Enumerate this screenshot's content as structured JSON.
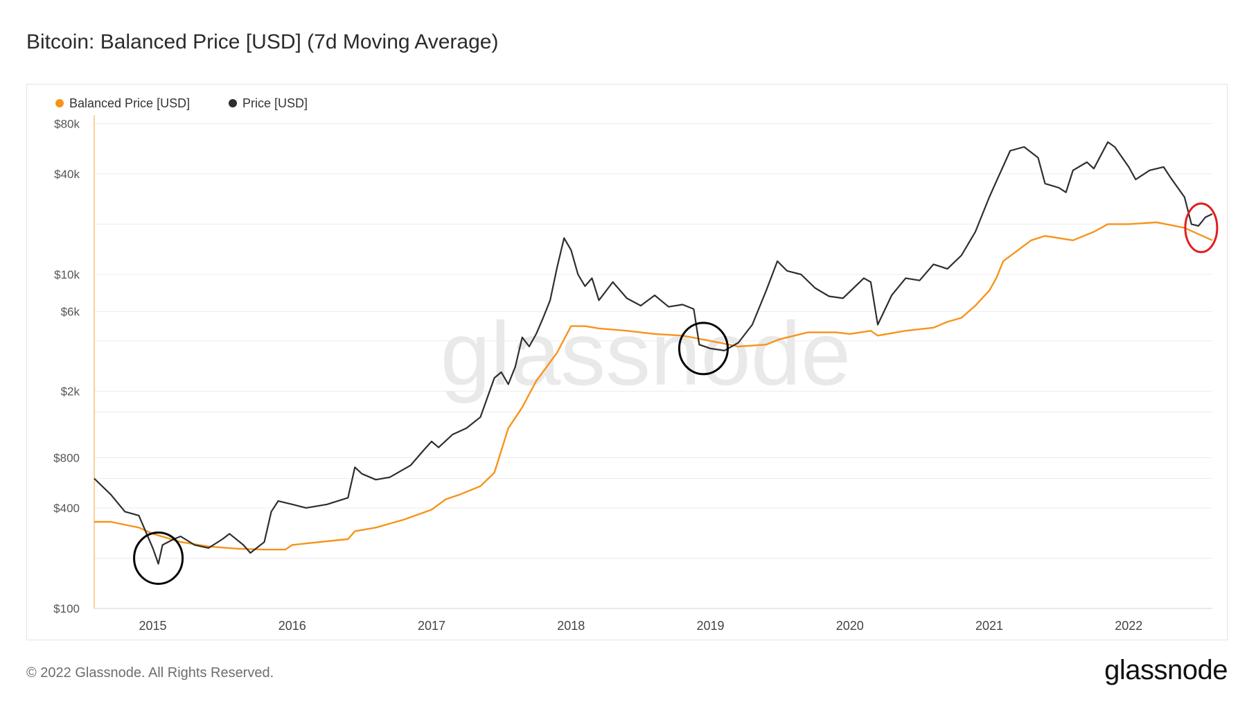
{
  "title": "Bitcoin: Balanced Price [USD] (7d Moving Average)",
  "footer": "© 2022 Glassnode. All Rights Reserved.",
  "brand": "glassnode",
  "watermark": "glassnode",
  "colors": {
    "balanced": "#f7931a",
    "price": "#2e2e2e",
    "grid": "#ececec",
    "circle_black": "#000000",
    "circle_red": "#e01e1e"
  },
  "chart_data": {
    "type": "line",
    "title": "Bitcoin: Balanced Price [USD] (7d Moving Average)",
    "yscale": "log",
    "xlim": [
      2014.58,
      2022.6
    ],
    "ylim": [
      100,
      90000
    ],
    "x_ticks": [
      {
        "x": 2015,
        "label": "2015"
      },
      {
        "x": 2016,
        "label": "2016"
      },
      {
        "x": 2017,
        "label": "2017"
      },
      {
        "x": 2018,
        "label": "2018"
      },
      {
        "x": 2019,
        "label": "2019"
      },
      {
        "x": 2020,
        "label": "2020"
      },
      {
        "x": 2021,
        "label": "2021"
      },
      {
        "x": 2022,
        "label": "2022"
      }
    ],
    "y_ticks": [
      {
        "v": 100,
        "label": "$100"
      },
      {
        "v": 400,
        "label": "$400"
      },
      {
        "v": 800,
        "label": "$800"
      },
      {
        "v": 2000,
        "label": "$2k"
      },
      {
        "v": 6000,
        "label": "$6k"
      },
      {
        "v": 10000,
        "label": "$10k"
      },
      {
        "v": 40000,
        "label": "$40k"
      },
      {
        "v": 80000,
        "label": "$80k"
      }
    ],
    "y_gridlines": [
      100,
      200,
      400,
      600,
      800,
      1500,
      2000,
      4000,
      6000,
      10000,
      20000,
      40000,
      80000
    ],
    "legend": [
      {
        "name": "Balanced Price [USD]",
        "color": "#f7931a"
      },
      {
        "name": "Price [USD]",
        "color": "#2e2e2e"
      }
    ],
    "series": [
      {
        "name": "Balanced Price [USD]",
        "points": [
          [
            2014.58,
            330
          ],
          [
            2014.7,
            330
          ],
          [
            2014.9,
            305
          ],
          [
            2015.0,
            280
          ],
          [
            2015.2,
            250
          ],
          [
            2015.4,
            235
          ],
          [
            2015.6,
            228
          ],
          [
            2015.8,
            225
          ],
          [
            2015.95,
            225
          ],
          [
            2016.0,
            240
          ],
          [
            2016.1,
            245
          ],
          [
            2016.3,
            255
          ],
          [
            2016.4,
            260
          ],
          [
            2016.45,
            290
          ],
          [
            2016.6,
            305
          ],
          [
            2016.8,
            340
          ],
          [
            2017.0,
            390
          ],
          [
            2017.1,
            450
          ],
          [
            2017.2,
            480
          ],
          [
            2017.35,
            540
          ],
          [
            2017.45,
            650
          ],
          [
            2017.55,
            1200
          ],
          [
            2017.65,
            1600
          ],
          [
            2017.75,
            2300
          ],
          [
            2017.9,
            3400
          ],
          [
            2018.0,
            4900
          ],
          [
            2018.1,
            4900
          ],
          [
            2018.2,
            4750
          ],
          [
            2018.4,
            4600
          ],
          [
            2018.6,
            4400
          ],
          [
            2018.8,
            4300
          ],
          [
            2019.0,
            4000
          ],
          [
            2019.2,
            3700
          ],
          [
            2019.4,
            3800
          ],
          [
            2019.5,
            4100
          ],
          [
            2019.7,
            4500
          ],
          [
            2019.9,
            4500
          ],
          [
            2020.0,
            4400
          ],
          [
            2020.15,
            4600
          ],
          [
            2020.2,
            4300
          ],
          [
            2020.4,
            4600
          ],
          [
            2020.6,
            4800
          ],
          [
            2020.7,
            5200
          ],
          [
            2020.8,
            5500
          ],
          [
            2020.9,
            6500
          ],
          [
            2021.0,
            8000
          ],
          [
            2021.05,
            9500
          ],
          [
            2021.1,
            12000
          ],
          [
            2021.3,
            16000
          ],
          [
            2021.4,
            17000
          ],
          [
            2021.6,
            16000
          ],
          [
            2021.75,
            18000
          ],
          [
            2021.85,
            20000
          ],
          [
            2022.0,
            20000
          ],
          [
            2022.2,
            20500
          ],
          [
            2022.4,
            19000
          ],
          [
            2022.6,
            16000
          ]
        ]
      },
      {
        "name": "Price [USD]",
        "points": [
          [
            2014.58,
            600
          ],
          [
            2014.7,
            480
          ],
          [
            2014.8,
            380
          ],
          [
            2014.9,
            360
          ],
          [
            2015.0,
            230
          ],
          [
            2015.04,
            185
          ],
          [
            2015.07,
            240
          ],
          [
            2015.15,
            260
          ],
          [
            2015.2,
            270
          ],
          [
            2015.3,
            240
          ],
          [
            2015.4,
            230
          ],
          [
            2015.5,
            260
          ],
          [
            2015.55,
            280
          ],
          [
            2015.65,
            240
          ],
          [
            2015.7,
            215
          ],
          [
            2015.8,
            250
          ],
          [
            2015.85,
            380
          ],
          [
            2015.9,
            440
          ],
          [
            2016.0,
            420
          ],
          [
            2016.1,
            400
          ],
          [
            2016.25,
            420
          ],
          [
            2016.4,
            460
          ],
          [
            2016.45,
            700
          ],
          [
            2016.5,
            640
          ],
          [
            2016.6,
            590
          ],
          [
            2016.7,
            610
          ],
          [
            2016.85,
            720
          ],
          [
            2016.95,
            900
          ],
          [
            2017.0,
            1000
          ],
          [
            2017.05,
            920
          ],
          [
            2017.15,
            1100
          ],
          [
            2017.25,
            1200
          ],
          [
            2017.35,
            1400
          ],
          [
            2017.45,
            2400
          ],
          [
            2017.5,
            2600
          ],
          [
            2017.55,
            2200
          ],
          [
            2017.6,
            2800
          ],
          [
            2017.65,
            4200
          ],
          [
            2017.7,
            3700
          ],
          [
            2017.75,
            4400
          ],
          [
            2017.8,
            5500
          ],
          [
            2017.85,
            7000
          ],
          [
            2017.9,
            11000
          ],
          [
            2017.95,
            16500
          ],
          [
            2018.0,
            14000
          ],
          [
            2018.05,
            10000
          ],
          [
            2018.1,
            8500
          ],
          [
            2018.15,
            9500
          ],
          [
            2018.2,
            7000
          ],
          [
            2018.3,
            9000
          ],
          [
            2018.4,
            7200
          ],
          [
            2018.5,
            6500
          ],
          [
            2018.6,
            7500
          ],
          [
            2018.7,
            6400
          ],
          [
            2018.8,
            6600
          ],
          [
            2018.88,
            6200
          ],
          [
            2018.92,
            3800
          ],
          [
            2019.0,
            3600
          ],
          [
            2019.1,
            3500
          ],
          [
            2019.2,
            3900
          ],
          [
            2019.3,
            5000
          ],
          [
            2019.4,
            8000
          ],
          [
            2019.48,
            12000
          ],
          [
            2019.55,
            10500
          ],
          [
            2019.65,
            10000
          ],
          [
            2019.75,
            8300
          ],
          [
            2019.85,
            7400
          ],
          [
            2019.95,
            7200
          ],
          [
            2020.1,
            9500
          ],
          [
            2020.15,
            9000
          ],
          [
            2020.2,
            5000
          ],
          [
            2020.3,
            7500
          ],
          [
            2020.4,
            9500
          ],
          [
            2020.5,
            9200
          ],
          [
            2020.6,
            11500
          ],
          [
            2020.7,
            10800
          ],
          [
            2020.8,
            13000
          ],
          [
            2020.9,
            18000
          ],
          [
            2021.0,
            29000
          ],
          [
            2021.05,
            36000
          ],
          [
            2021.15,
            55000
          ],
          [
            2021.25,
            58000
          ],
          [
            2021.35,
            50000
          ],
          [
            2021.4,
            35000
          ],
          [
            2021.5,
            33000
          ],
          [
            2021.55,
            31000
          ],
          [
            2021.6,
            42000
          ],
          [
            2021.7,
            47000
          ],
          [
            2021.75,
            43000
          ],
          [
            2021.85,
            62000
          ],
          [
            2021.9,
            58000
          ],
          [
            2022.0,
            44000
          ],
          [
            2022.05,
            37000
          ],
          [
            2022.15,
            42000
          ],
          [
            2022.25,
            44000
          ],
          [
            2022.3,
            38000
          ],
          [
            2022.4,
            29000
          ],
          [
            2022.45,
            20000
          ],
          [
            2022.5,
            19500
          ],
          [
            2022.55,
            22000
          ],
          [
            2022.6,
            23000
          ]
        ]
      }
    ],
    "annotations": [
      {
        "shape": "circle",
        "color": "black",
        "x": 2015.04,
        "y": 200
      },
      {
        "shape": "circle",
        "color": "black",
        "x": 2018.95,
        "y": 3600
      },
      {
        "shape": "circle",
        "color": "red",
        "x": 2022.52,
        "y": 19000
      }
    ]
  }
}
